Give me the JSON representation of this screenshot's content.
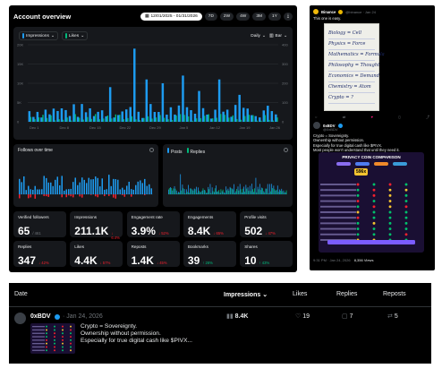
{
  "dashboard": {
    "title": "Account overview",
    "date_range": "12/01/2025 - 01/31/2026",
    "ranges": [
      "7D",
      "2W",
      "4W",
      "3M",
      "1Y"
    ],
    "main_chart": {
      "series_a": "Impressions",
      "series_b": "Likes",
      "granularity": "Daily",
      "chart_type": "Bar",
      "left_ticks": [
        "20K",
        "15K",
        "10K",
        "5K",
        "0"
      ],
      "right_ticks": [
        "400",
        "300",
        "200",
        "100",
        "0"
      ],
      "x_ticks": [
        "Dec 1",
        "Dec 8",
        "Dec 15",
        "Dec 22",
        "Dec 29",
        "Jan 5",
        "Jan 12",
        "Jan 19",
        "Jan 26"
      ],
      "colors": {
        "bars": "#1d9bf0",
        "likes": "#00ba7c"
      }
    },
    "follows_chart": {
      "title": "Follows over time"
    },
    "posts_chart": {
      "series_a": "Posts",
      "series_b": "Replies"
    },
    "stats": [
      {
        "label": "Verified followers",
        "value": "65",
        "sub": "/ 461",
        "change": "",
        "dir": ""
      },
      {
        "label": "Impressions",
        "value": "211.1K",
        "sub": "",
        "change": "↓ 6.4%",
        "dir": "down"
      },
      {
        "label": "Engagement rate",
        "value": "3.9%",
        "sub": "",
        "change": "↓ 52%",
        "dir": "down"
      },
      {
        "label": "Engagements",
        "value": "8.4K",
        "sub": "",
        "change": "↓ 65%",
        "dir": "down"
      },
      {
        "label": "Profile visits",
        "value": "502",
        "sub": "",
        "change": "↓ 47%",
        "dir": "down"
      },
      {
        "label": "Replies",
        "value": "347",
        "sub": "",
        "change": "↓ 42%",
        "dir": "down"
      },
      {
        "label": "Likes",
        "value": "4.4K",
        "sub": "",
        "change": "↓ 57%",
        "dir": "down"
      },
      {
        "label": "Reposts",
        "value": "1.4K",
        "sub": "",
        "change": "↓ 45%",
        "dir": "down"
      },
      {
        "label": "Bookmarks",
        "value": "39",
        "sub": "",
        "change": "↑ 26%",
        "dir": "up"
      },
      {
        "label": "Shares",
        "value": "10",
        "sub": "",
        "change": "↑ 43%",
        "dir": "up"
      }
    ]
  },
  "tweet": {
    "quoted_name": "Binance",
    "quoted_handle": "@binance · Jan 24",
    "quoted_text": "This one is easy.",
    "note_lines": [
      "Biology = Cell",
      "Physics = Force",
      "Mathematics = Formula",
      "Philosophy = Thought",
      "Economics = Demand",
      "Chemistry = Atom",
      "Crypto = ?"
    ],
    "author_name": "0xBDV",
    "author_handle": "@0xBDV",
    "text": [
      "Crypto = Sovereignty.",
      "Ownership without permission.",
      "Especially for true digital cash like $PIVX.",
      "Most people won't understand that until they need it."
    ],
    "card_title": "PRIVACY COIN COMPARISON",
    "card_highlight": "596x",
    "footer_meta": "9:31 PM · Jan 24, 2026",
    "views": "8,356 Views"
  },
  "table": {
    "headers": {
      "date": "Date",
      "impressions": "Impressions",
      "likes": "Likes",
      "replies": "Replies",
      "reposts": "Reposts"
    },
    "row": {
      "author": "0xBDV",
      "date": "Jan 24, 2026",
      "text": [
        "Crypto = Sovereignty.",
        "Ownership without permission.",
        "Especially for true digital cash like $PIVX..."
      ],
      "impressions": "8.4K",
      "likes": "19",
      "replies": "7",
      "reposts": "5"
    }
  }
}
